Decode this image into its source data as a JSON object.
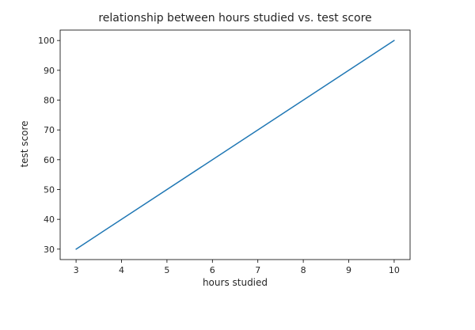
{
  "chart_data": {
    "type": "line",
    "title": "relationship between hours studied vs. test score",
    "xlabel": "hours studied",
    "ylabel": "test score",
    "x_ticks": [
      3,
      4,
      5,
      6,
      7,
      8,
      9,
      10
    ],
    "y_ticks": [
      30,
      40,
      50,
      60,
      70,
      80,
      90,
      100
    ],
    "xlim": [
      2.65,
      10.35
    ],
    "ylim": [
      26.5,
      103.5
    ],
    "grid": false,
    "line_color": "#1f77b4",
    "series": [
      {
        "x": [
          3,
          10
        ],
        "y": [
          30,
          100
        ]
      }
    ]
  }
}
